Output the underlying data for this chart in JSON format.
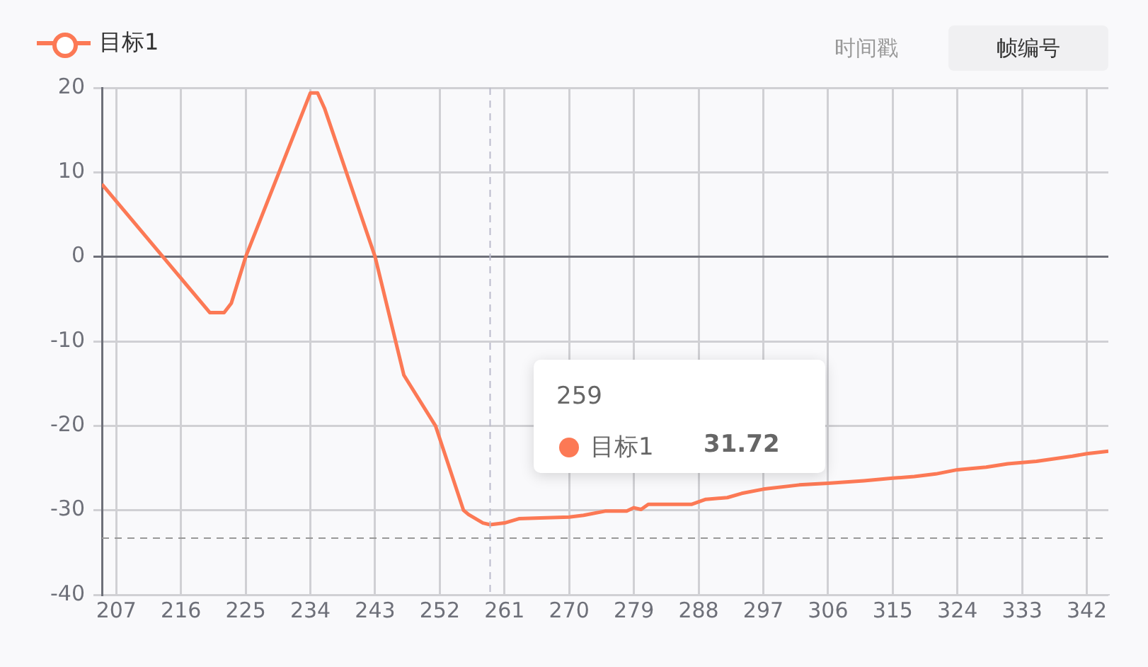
{
  "chart_data": {
    "type": "line",
    "xlim": [
      205,
      345
    ],
    "xticks": [
      207,
      216,
      225,
      234,
      243,
      252,
      261,
      270,
      279,
      288,
      297,
      306,
      315,
      324,
      333,
      342
    ],
    "ylim": [
      -40,
      20
    ],
    "yticks": [
      -40,
      -30,
      -20,
      -10,
      0,
      10,
      20
    ],
    "grid": true,
    "legend": "top left",
    "line_style": "solid",
    "series": [
      {
        "name": "目标1",
        "color": "#fc7955",
        "x": [
          205,
          220,
          222,
          223,
          225,
          234,
          235,
          236,
          243,
          247,
          251.4,
          255.3,
          256,
          258,
          259,
          261,
          263,
          266,
          270,
          272,
          275,
          278,
          279,
          280,
          281,
          287,
          289,
          292,
          294,
          297,
          302,
          306,
          311,
          315,
          318,
          321,
          324,
          328,
          331,
          335,
          340,
          342,
          345
        ],
        "values": [
          8.6,
          -6.6,
          -6.6,
          -5.5,
          0,
          19.4,
          19.4,
          17.5,
          0,
          -14,
          -20,
          -30,
          -30.5,
          -31.5,
          -31.7,
          -31.5,
          -31,
          -30.9,
          -30.8,
          -30.6,
          -30.1,
          -30.1,
          -29.7,
          -29.9,
          -29.3,
          -29.3,
          -28.7,
          -28.5,
          -28,
          -27.5,
          -27,
          -26.8,
          -26.5,
          -26.2,
          -26,
          -25.7,
          -25.2,
          -24.9,
          -24.5,
          -24.2,
          -23.6,
          -23.3,
          -23
        ]
      }
    ],
    "ref_lines": [
      {
        "axis": "x",
        "value": 259,
        "color": "#bbbbcc",
        "line_style": "dashed"
      },
      {
        "axis": "y",
        "value": -33.3,
        "color": "#999999",
        "line_style": "dashed"
      }
    ],
    "annotations": [
      "时间戳",
      "帧编号",
      "259",
      "目标1",
      "31.72"
    ]
  }
}
